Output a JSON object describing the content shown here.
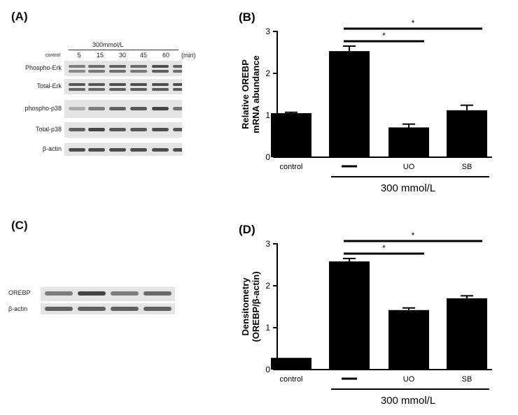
{
  "panelA": {
    "label": "(A)",
    "condition": "300mmol/L",
    "control": "control",
    "times": [
      "5",
      "15",
      "30",
      "45",
      "60"
    ],
    "unit": "(min)",
    "rows": [
      "Phospho-Erk",
      "Total-Erk",
      "phospho-p38",
      "Total-p38",
      "β-actin"
    ]
  },
  "panelC": {
    "label": "(C)",
    "rows": [
      "OREBP",
      "β-actin"
    ]
  },
  "chart_data": [
    {
      "panel": "(B)",
      "type": "bar",
      "categories": [
        "control",
        "—",
        "UO",
        "SB"
      ],
      "values": [
        1.05,
        2.53,
        0.71,
        1.12
      ],
      "errors": [
        0.02,
        0.12,
        0.08,
        0.12
      ],
      "ylabel": "Relative OREBP\nmRNA abundance",
      "ylim": [
        0,
        3
      ],
      "yticks": [
        "0",
        "1",
        "2",
        "3"
      ],
      "group_label": "300 mmol/L",
      "significance": [
        {
          "from": "—",
          "to": "UO",
          "mark": "*"
        },
        {
          "from": "—",
          "to": "SB",
          "mark": "*"
        }
      ]
    },
    {
      "panel": "(D)",
      "type": "bar",
      "categories": [
        "control",
        "—",
        "UO",
        "SB"
      ],
      "values": [
        0.28,
        2.58,
        1.42,
        1.7
      ],
      "errors": [
        0.0,
        0.07,
        0.05,
        0.06
      ],
      "ylabel": "Densitometry\n(OREBP/β-actin)",
      "ylim": [
        0,
        3
      ],
      "yticks": [
        "0",
        "1",
        "2",
        "3"
      ],
      "group_label": "300 mmol/L",
      "significance": [
        {
          "from": "—",
          "to": "UO",
          "mark": "*"
        },
        {
          "from": "—",
          "to": "SB",
          "mark": "*"
        }
      ]
    }
  ]
}
